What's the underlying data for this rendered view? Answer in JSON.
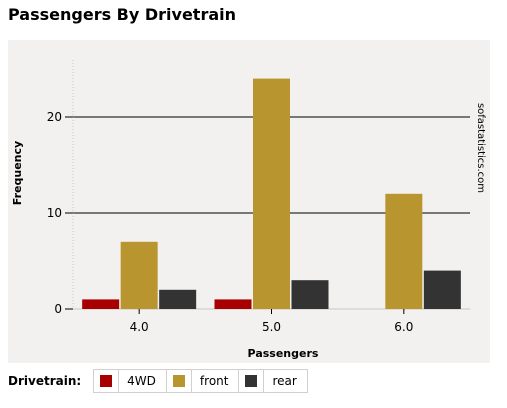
{
  "chart_data": {
    "type": "bar",
    "title": "Passengers By Drivetrain",
    "xlabel": "Passengers",
    "ylabel": "Frequency",
    "categories": [
      "4.0",
      "5.0",
      "6.0"
    ],
    "series": [
      {
        "name": "4WD",
        "values": [
          1,
          1,
          0
        ],
        "color": "#a80000"
      },
      {
        "name": "front",
        "values": [
          7,
          24,
          12
        ],
        "color": "#b99530"
      },
      {
        "name": "rear",
        "values": [
          2,
          3,
          4
        ],
        "color": "#333333"
      }
    ],
    "yticks": [
      0,
      10,
      20
    ],
    "ylim": [
      0,
      26.5
    ],
    "grid": true,
    "legend_title": "Drivetrain:",
    "watermark": "sofastatistics.com",
    "plot_background": "#f2f1ef"
  }
}
